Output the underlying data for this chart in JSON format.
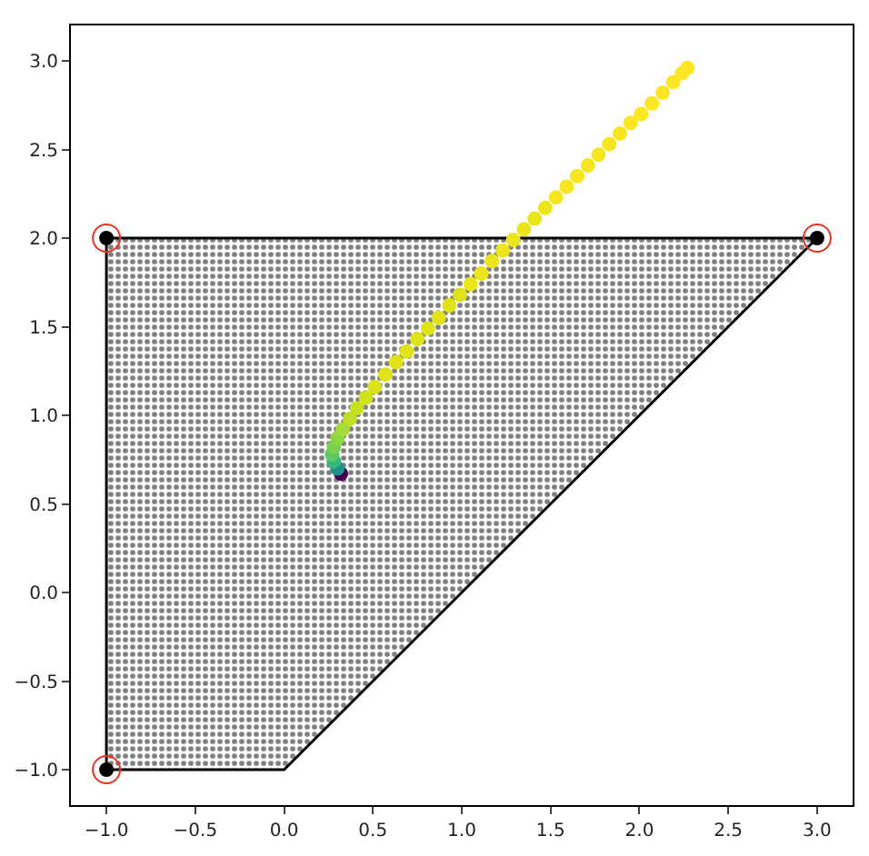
{
  "chart_data": {
    "type": "scatter",
    "xlim": [
      -1.2,
      3.2
    ],
    "ylim": [
      -1.2,
      3.2
    ],
    "xticks": [
      {
        "value": -1.0,
        "label": "−1.0"
      },
      {
        "value": -0.5,
        "label": "−0.5"
      },
      {
        "value": 0.0,
        "label": "0.0"
      },
      {
        "value": 0.5,
        "label": "0.5"
      },
      {
        "value": 1.0,
        "label": "1.0"
      },
      {
        "value": 1.5,
        "label": "1.5"
      },
      {
        "value": 2.0,
        "label": "2.0"
      },
      {
        "value": 2.5,
        "label": "2.5"
      },
      {
        "value": 3.0,
        "label": "3.0"
      }
    ],
    "yticks": [
      {
        "value": -1.0,
        "label": "−1.0"
      },
      {
        "value": -0.5,
        "label": "−0.5"
      },
      {
        "value": 0.0,
        "label": "0.0"
      },
      {
        "value": 0.5,
        "label": "0.5"
      },
      {
        "value": 1.0,
        "label": "1.0"
      },
      {
        "value": 1.5,
        "label": "1.5"
      },
      {
        "value": 2.0,
        "label": "2.0"
      },
      {
        "value": 2.5,
        "label": "2.5"
      },
      {
        "value": 3.0,
        "label": "3.0"
      }
    ],
    "series": [
      {
        "type": "area",
        "color": "#000000",
        "marker": "none",
        "x": [
          -1,
          -1,
          0,
          3,
          -1
        ],
        "values": [
          2,
          -1,
          -1,
          2,
          2
        ]
      },
      {
        "marker": "circle",
        "color": "#000000",
        "x": [
          -1,
          3,
          -1
        ],
        "values": [
          2,
          2,
          -1
        ]
      },
      {
        "marker": "circle-open",
        "color": "#e8321e",
        "x": [
          -1,
          3,
          -1
        ],
        "values": [
          2,
          2,
          -1
        ]
      },
      {
        "marker": "circle",
        "x": [
          0.32,
          0.3,
          0.28,
          0.27,
          0.28,
          0.3,
          0.33,
          0.37,
          0.41,
          0.46,
          0.51,
          0.57,
          0.63,
          0.69,
          0.75,
          0.81,
          0.87,
          0.93,
          0.99,
          1.05,
          1.11,
          1.17,
          1.23,
          1.29,
          1.35,
          1.41,
          1.47,
          1.53,
          1.59,
          1.65,
          1.71,
          1.77,
          1.83,
          1.89,
          1.95,
          2.01,
          2.07,
          2.13,
          2.19,
          2.24,
          2.27
        ],
        "values": [
          0.67,
          0.7,
          0.74,
          0.78,
          0.82,
          0.87,
          0.92,
          0.98,
          1.04,
          1.1,
          1.16,
          1.23,
          1.3,
          1.36,
          1.43,
          1.49,
          1.55,
          1.62,
          1.68,
          1.74,
          1.8,
          1.87,
          1.93,
          1.99,
          2.05,
          2.11,
          2.17,
          2.23,
          2.29,
          2.35,
          2.41,
          2.47,
          2.53,
          2.59,
          2.65,
          2.7,
          2.76,
          2.82,
          2.88,
          2.93,
          2.96
        ],
        "colors": [
          "#440154",
          "#21918c",
          "#35b779",
          "#5ec962",
          "#7ad151",
          "#90d743",
          "#a5db36",
          "#bddf26",
          "#c7e020",
          "#d2e21b",
          "#dae319",
          "#e0e31a",
          "#e0e31a",
          "#e0e31a",
          "#e0e31a",
          "#e0e31a",
          "#e0e31a",
          "#e0e31a",
          "#e0e31a",
          "#ece51c",
          "#ece51c",
          "#ece51c",
          "#ece51c",
          "#ece51c",
          "#ece51c",
          "#ece51c",
          "#ece51c",
          "#f6e620",
          "#f6e620",
          "#f6e620",
          "#f6e620",
          "#f6e620",
          "#f6e620",
          "#f6e620",
          "#fde725",
          "#fde725",
          "#fde725",
          "#fde725",
          "#fde725",
          "#fde725",
          "#fde725"
        ]
      }
    ]
  }
}
